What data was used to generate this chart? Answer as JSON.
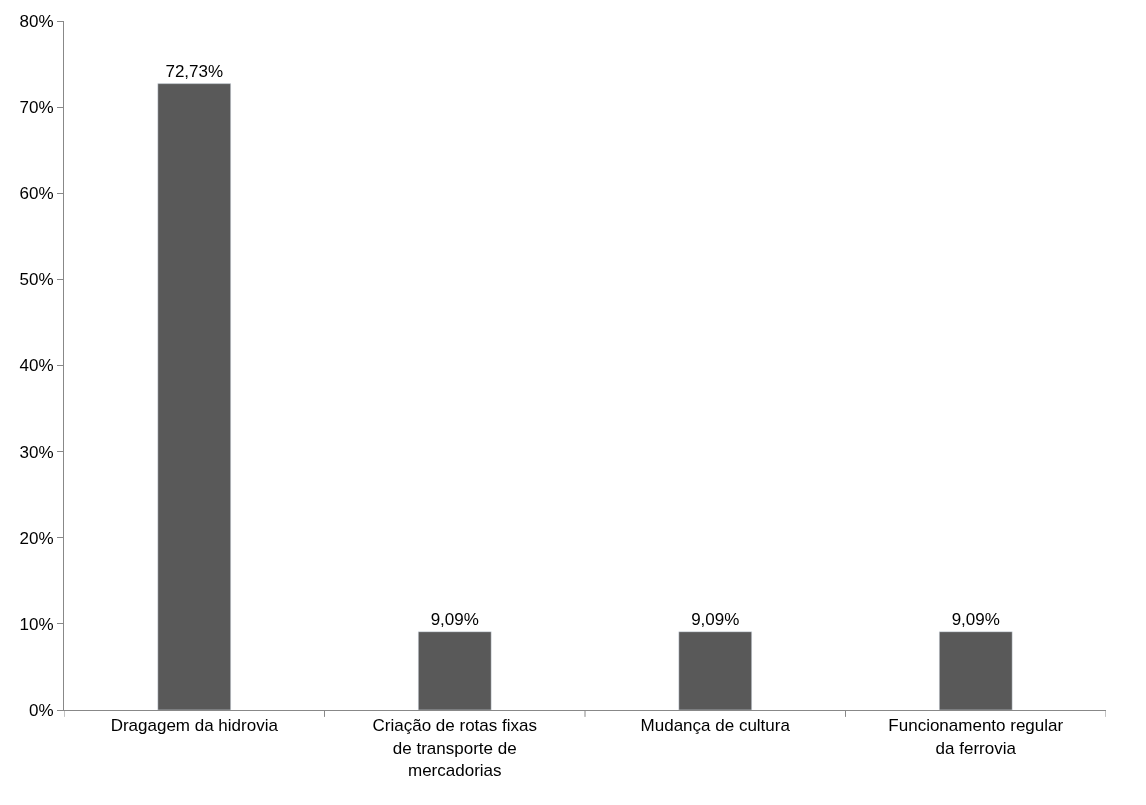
{
  "chart_data": {
    "type": "bar",
    "categories": [
      "Dragagem da hidrovia",
      "Criação de rotas fixas de transporte de mercadorias",
      "Mudança de cultura",
      "Funcionamento regular da ferrovia"
    ],
    "values": [
      72.73,
      9.09,
      9.09,
      9.09
    ],
    "color": "#595959",
    "value_labels": [
      "72,73%",
      "9,09%",
      "9,09%",
      "9,09%"
    ],
    "ylim": [
      0,
      80
    ],
    "yticks": [
      {
        "value": 0,
        "label": "0%"
      },
      {
        "value": 10,
        "label": "10%"
      },
      {
        "value": 20,
        "label": "20%"
      },
      {
        "value": 30,
        "label": "30%"
      },
      {
        "value": 40,
        "label": "40%"
      },
      {
        "value": 50,
        "label": "50%"
      },
      {
        "value": 60,
        "label": "60%"
      },
      {
        "value": 70,
        "label": "70%"
      },
      {
        "value": 80,
        "label": "80%"
      }
    ]
  }
}
